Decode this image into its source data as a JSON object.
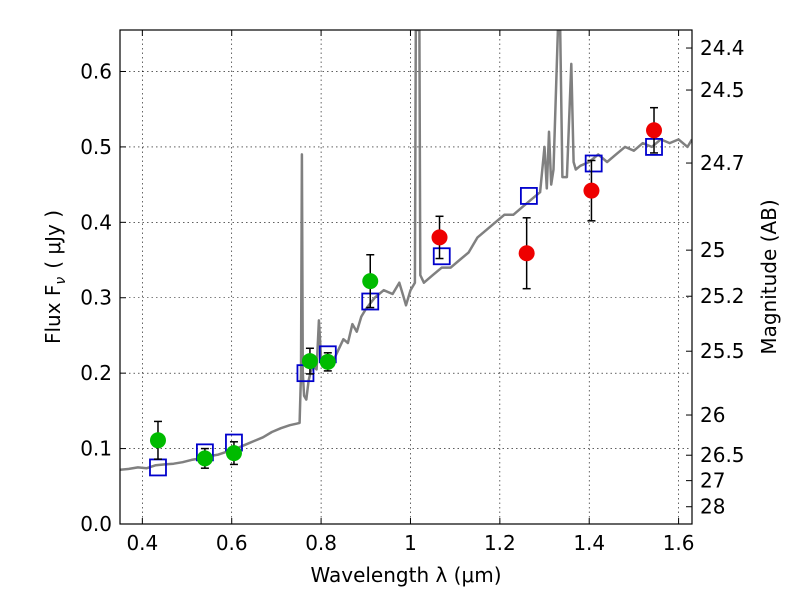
{
  "chart_data": {
    "type": "scatter",
    "xlabel": "Wavelength  λ (μm)",
    "ylabel": "Flux  F",
    "ylabel_sub": "ν",
    "ylabel_unit": "( μJy )",
    "y2label": "Magnitude (AB)",
    "xlim": [
      0.35,
      1.63
    ],
    "ylim": [
      0.0,
      0.655
    ],
    "grid": true,
    "x_ticks": [
      {
        "value": 0.4,
        "label": "0.4"
      },
      {
        "value": 0.6,
        "label": "0.6"
      },
      {
        "value": 0.8,
        "label": "0.8"
      },
      {
        "value": 1.0,
        "label": "1"
      },
      {
        "value": 1.2,
        "label": "1.2"
      },
      {
        "value": 1.4,
        "label": "1.4"
      },
      {
        "value": 1.6,
        "label": "1.6"
      }
    ],
    "y_ticks": [
      {
        "value": 0.0,
        "label": "0.0"
      },
      {
        "value": 0.1,
        "label": "0.1"
      },
      {
        "value": 0.2,
        "label": "0.2"
      },
      {
        "value": 0.3,
        "label": "0.3"
      },
      {
        "value": 0.4,
        "label": "0.4"
      },
      {
        "value": 0.5,
        "label": "0.5"
      },
      {
        "value": 0.6,
        "label": "0.6"
      }
    ],
    "y2_ticks": [
      {
        "flux": 0.6311,
        "label": "24.4"
      },
      {
        "flux": 0.5754,
        "label": "24.5"
      },
      {
        "flux": 0.4786,
        "label": "24.7"
      },
      {
        "flux": 0.3631,
        "label": "25"
      },
      {
        "flux": 0.302,
        "label": "25.2"
      },
      {
        "flux": 0.2291,
        "label": "25.5"
      },
      {
        "flux": 0.1445,
        "label": "26"
      },
      {
        "flux": 0.0912,
        "label": "26.5"
      },
      {
        "flux": 0.0575,
        "label": "27"
      },
      {
        "flux": 0.0229,
        "label": "28"
      }
    ],
    "series": [
      {
        "name": "model_spectrum",
        "kind": "line",
        "color": "#808080",
        "points": [
          [
            0.35,
            0.072
          ],
          [
            0.37,
            0.073
          ],
          [
            0.39,
            0.075
          ],
          [
            0.41,
            0.074
          ],
          [
            0.43,
            0.078
          ],
          [
            0.45,
            0.079
          ],
          [
            0.47,
            0.08
          ],
          [
            0.49,
            0.082
          ],
          [
            0.51,
            0.085
          ],
          [
            0.53,
            0.087
          ],
          [
            0.55,
            0.09
          ],
          [
            0.57,
            0.092
          ],
          [
            0.59,
            0.096
          ],
          [
            0.61,
            0.1
          ],
          [
            0.63,
            0.105
          ],
          [
            0.65,
            0.11
          ],
          [
            0.67,
            0.115
          ],
          [
            0.69,
            0.122
          ],
          [
            0.71,
            0.127
          ],
          [
            0.73,
            0.131
          ],
          [
            0.745,
            0.133
          ],
          [
            0.752,
            0.134
          ],
          [
            0.755,
            0.2
          ],
          [
            0.757,
            0.49
          ],
          [
            0.759,
            0.2
          ],
          [
            0.762,
            0.17
          ],
          [
            0.767,
            0.165
          ],
          [
            0.772,
            0.19
          ],
          [
            0.78,
            0.21
          ],
          [
            0.79,
            0.205
          ],
          [
            0.795,
            0.27
          ],
          [
            0.8,
            0.22
          ],
          [
            0.81,
            0.215
          ],
          [
            0.83,
            0.22
          ],
          [
            0.85,
            0.245
          ],
          [
            0.86,
            0.24
          ],
          [
            0.87,
            0.265
          ],
          [
            0.88,
            0.255
          ],
          [
            0.89,
            0.275
          ],
          [
            0.9,
            0.285
          ],
          [
            0.92,
            0.3
          ],
          [
            0.94,
            0.31
          ],
          [
            0.96,
            0.305
          ],
          [
            0.975,
            0.32
          ],
          [
            0.985,
            0.3
          ],
          [
            0.99,
            0.29
          ],
          [
            1.0,
            0.31
          ],
          [
            1.01,
            0.32
          ],
          [
            1.012,
            0.655
          ],
          [
            1.02,
            0.655
          ],
          [
            1.022,
            0.33
          ],
          [
            1.03,
            0.32
          ],
          [
            1.05,
            0.33
          ],
          [
            1.07,
            0.34
          ],
          [
            1.09,
            0.34
          ],
          [
            1.11,
            0.35
          ],
          [
            1.13,
            0.36
          ],
          [
            1.15,
            0.38
          ],
          [
            1.17,
            0.39
          ],
          [
            1.19,
            0.4
          ],
          [
            1.21,
            0.41
          ],
          [
            1.23,
            0.41
          ],
          [
            1.25,
            0.42
          ],
          [
            1.27,
            0.43
          ],
          [
            1.29,
            0.44
          ],
          [
            1.3,
            0.5
          ],
          [
            1.305,
            0.445
          ],
          [
            1.31,
            0.52
          ],
          [
            1.315,
            0.45
          ],
          [
            1.32,
            0.47
          ],
          [
            1.33,
            0.655
          ],
          [
            1.335,
            0.655
          ],
          [
            1.34,
            0.46
          ],
          [
            1.35,
            0.46
          ],
          [
            1.36,
            0.61
          ],
          [
            1.365,
            0.48
          ],
          [
            1.37,
            0.47
          ],
          [
            1.38,
            0.475
          ],
          [
            1.4,
            0.48
          ],
          [
            1.42,
            0.49
          ],
          [
            1.44,
            0.48
          ],
          [
            1.46,
            0.49
          ],
          [
            1.48,
            0.5
          ],
          [
            1.5,
            0.495
          ],
          [
            1.52,
            0.505
          ],
          [
            1.54,
            0.5
          ],
          [
            1.56,
            0.51
          ],
          [
            1.58,
            0.505
          ],
          [
            1.6,
            0.51
          ],
          [
            1.62,
            0.5
          ],
          [
            1.63,
            0.51
          ]
        ]
      },
      {
        "name": "model_photometry",
        "kind": "square",
        "color": "#0000cc",
        "points": [
          [
            0.435,
            0.075
          ],
          [
            0.54,
            0.095
          ],
          [
            0.605,
            0.108
          ],
          [
            0.765,
            0.2
          ],
          [
            0.815,
            0.225
          ],
          [
            0.91,
            0.295
          ],
          [
            1.07,
            0.355
          ],
          [
            1.265,
            0.435
          ],
          [
            1.41,
            0.478
          ],
          [
            1.545,
            0.5
          ]
        ]
      },
      {
        "name": "optical_observed",
        "kind": "circle",
        "color": "#00bb00",
        "points": [
          {
            "x": 0.435,
            "y": 0.111,
            "err": 0.025
          },
          {
            "x": 0.54,
            "y": 0.087,
            "err": 0.013
          },
          {
            "x": 0.605,
            "y": 0.094,
            "err": 0.015
          },
          {
            "x": 0.775,
            "y": 0.216,
            "err": 0.017
          },
          {
            "x": 0.815,
            "y": 0.215,
            "err": 0.012
          },
          {
            "x": 0.91,
            "y": 0.322,
            "err": 0.035
          }
        ]
      },
      {
        "name": "nir_observed",
        "kind": "circle",
        "color": "#ee0000",
        "points": [
          {
            "x": 1.065,
            "y": 0.38,
            "err": 0.028
          },
          {
            "x": 1.26,
            "y": 0.359,
            "err": 0.047
          },
          {
            "x": 1.405,
            "y": 0.442,
            "err": 0.04
          },
          {
            "x": 1.545,
            "y": 0.522,
            "err": 0.03
          }
        ]
      }
    ]
  }
}
